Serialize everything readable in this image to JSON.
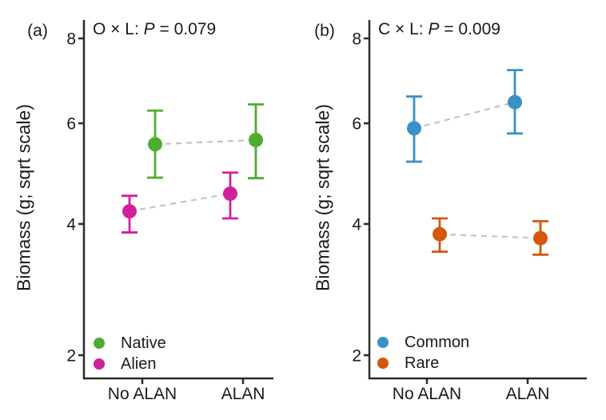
{
  "figure": {
    "background": "#ffffff",
    "ink_color": "#1a1a1a",
    "axis_color": "#2a2a2a",
    "dashed_line_color": "#c4c4c4"
  },
  "chart_data": [
    {
      "type": "scatter",
      "panel_tag": "(a)",
      "annotation": {
        "prefix": "O × L: ",
        "stat": "P",
        "suffix": " = 0.079"
      },
      "ylabel": "Biomass (g; sqrt scale)",
      "yscale": "sqrt",
      "ylim": [
        1.7,
        8.4
      ],
      "yticks": [
        8,
        6,
        4,
        2
      ],
      "categories": [
        "No ALAN",
        "ALAN"
      ],
      "grid": "off",
      "legend_position": "bottom-left",
      "series": [
        {
          "name": "Native",
          "color": "#4ead30",
          "values": [
            5.55,
            5.64
          ],
          "err_low": [
            4.87,
            4.86
          ],
          "err_high": [
            6.28,
            6.42
          ],
          "dodge": 16
        },
        {
          "name": "Alien",
          "color": "#d0219c",
          "values": [
            4.23,
            4.56
          ],
          "err_low": [
            3.85,
            4.1
          ],
          "err_high": [
            4.52,
            4.97
          ],
          "dodge": -16
        }
      ]
    },
    {
      "type": "scatter",
      "panel_tag": "(b)",
      "annotation": {
        "prefix": "C × L: ",
        "stat": "P",
        "suffix": " = 0.009"
      },
      "ylabel": "Biomass (g; sqrt scale)",
      "yscale": "sqrt",
      "ylim": [
        1.7,
        8.4
      ],
      "yticks": [
        8,
        6,
        4,
        2
      ],
      "categories": [
        "No ALAN",
        "ALAN"
      ],
      "grid": "off",
      "legend_position": "bottom-left",
      "series": [
        {
          "name": "Common",
          "color": "#3a91c8",
          "values": [
            5.89,
            6.47
          ],
          "err_low": [
            5.19,
            5.78
          ],
          "err_high": [
            6.6,
            7.22
          ],
          "dodge": -16
        },
        {
          "name": "Rare",
          "color": "#d4570c",
          "values": [
            3.82,
            3.75
          ],
          "err_low": [
            3.52,
            3.47
          ],
          "err_high": [
            4.1,
            4.05
          ],
          "dodge": 16
        }
      ]
    }
  ]
}
